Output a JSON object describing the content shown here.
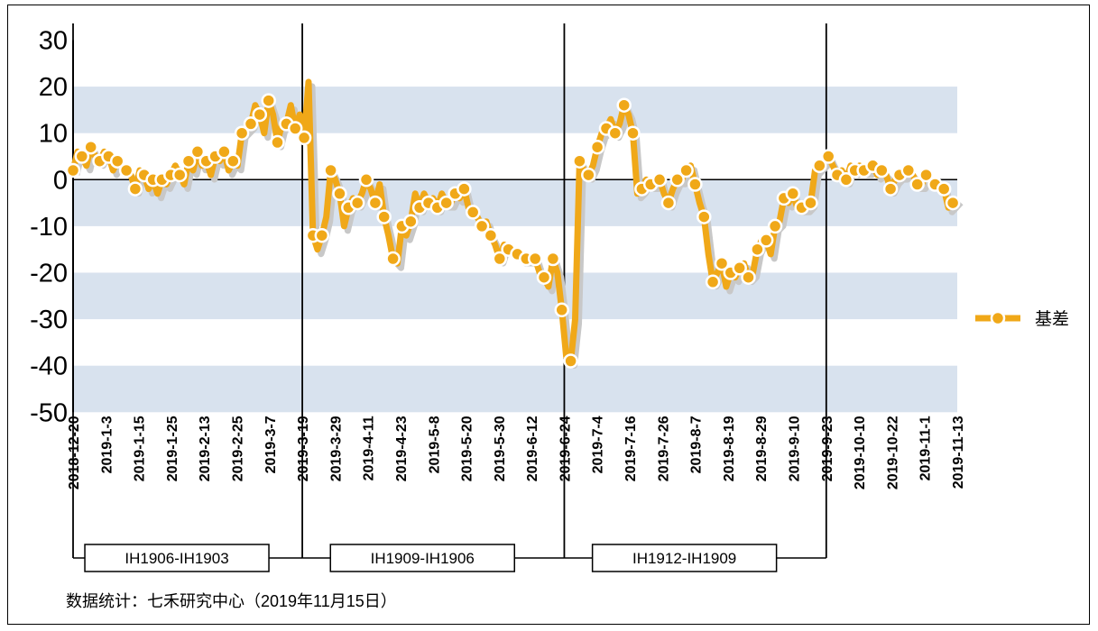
{
  "chart_data": {
    "type": "line",
    "title": "",
    "xlabel": "",
    "ylabel": "",
    "ylim": [
      -50,
      30
    ],
    "yticks": [
      "30",
      "20",
      "10",
      "0",
      "-10",
      "-20",
      "-30",
      "-40",
      "-50"
    ],
    "x_tick_labels": [
      "2018-12-20",
      "2019-1-3",
      "2019-1-15",
      "2019-1-25",
      "2019-2-13",
      "2019-2-25",
      "2019-3-7",
      "2019-3-19",
      "2019-3-29",
      "2019-4-11",
      "2019-4-23",
      "2019-5-8",
      "2019-5-20",
      "2019-5-30",
      "2019-6-12",
      "2019-6-24",
      "2019-7-4",
      "2019-7-16",
      "2019-7-26",
      "2019-8-7",
      "2019-8-19",
      "2019-8-29",
      "2019-9-10",
      "2019-9-23",
      "2019-10-10",
      "2019-10-22",
      "2019-11-1",
      "2019-11-13"
    ],
    "grid": "alternating horizontal bands",
    "legend_position": "right",
    "series": [
      {
        "name": "基差",
        "color": "#f0a818",
        "values": [
          2,
          6,
          5,
          3,
          7,
          5,
          4,
          6,
          5,
          2,
          4,
          3,
          2,
          1,
          -2,
          2,
          1,
          -2,
          0,
          -3,
          0,
          -1,
          1,
          3,
          1,
          -1,
          4,
          2,
          6,
          3,
          4,
          1,
          5,
          4,
          6,
          2,
          4,
          3,
          10,
          11,
          12,
          16,
          14,
          10,
          17,
          14,
          8,
          12,
          12,
          16,
          11,
          14,
          9,
          21,
          -12,
          -15,
          -12,
          -8,
          2,
          0,
          -3,
          -10,
          -6,
          -4,
          -5,
          -3,
          0,
          -2,
          -5,
          -1,
          -8,
          -12,
          -17,
          -18,
          -10,
          -12,
          -9,
          -3,
          -6,
          -3,
          -5,
          -4,
          -6,
          -3,
          -5,
          -5,
          -3,
          -4,
          -2,
          -6,
          -7,
          -8,
          -10,
          -9,
          -12,
          -14,
          -17,
          -14,
          -15,
          -15,
          -16,
          -17,
          -17,
          -17,
          -17,
          -20,
          -21,
          -23,
          -17,
          -20,
          -28,
          -38,
          -39,
          -30,
          4,
          2,
          1,
          3,
          7,
          10,
          11,
          13,
          10,
          12,
          16,
          14,
          10,
          -3,
          -2,
          0,
          -1,
          -1,
          0,
          -3,
          -5,
          -2,
          0,
          0,
          2,
          3,
          -1,
          -5,
          -8,
          -16,
          -22,
          -20,
          -18,
          -23,
          -20,
          -21,
          -19,
          -18,
          -21,
          -20,
          -15,
          -13,
          -13,
          -16,
          -10,
          -9,
          -4,
          -5,
          -3,
          -6,
          -6,
          -6,
          -5,
          2,
          3,
          4,
          5,
          3,
          1,
          2,
          0,
          3,
          2,
          3,
          2,
          2,
          3,
          1,
          2,
          1,
          -2,
          0,
          1,
          1,
          2,
          1,
          -1,
          -1,
          1,
          0,
          -1,
          -1,
          -2,
          -6,
          -5,
          -4
        ]
      }
    ],
    "contract_periods": [
      "IH1906-IH1903",
      "IH1909-IH1906",
      "IH1912-IH1909"
    ],
    "legend_label": "基差"
  },
  "source_text": "数据统计：七禾研究中心（2019年11月15日）"
}
